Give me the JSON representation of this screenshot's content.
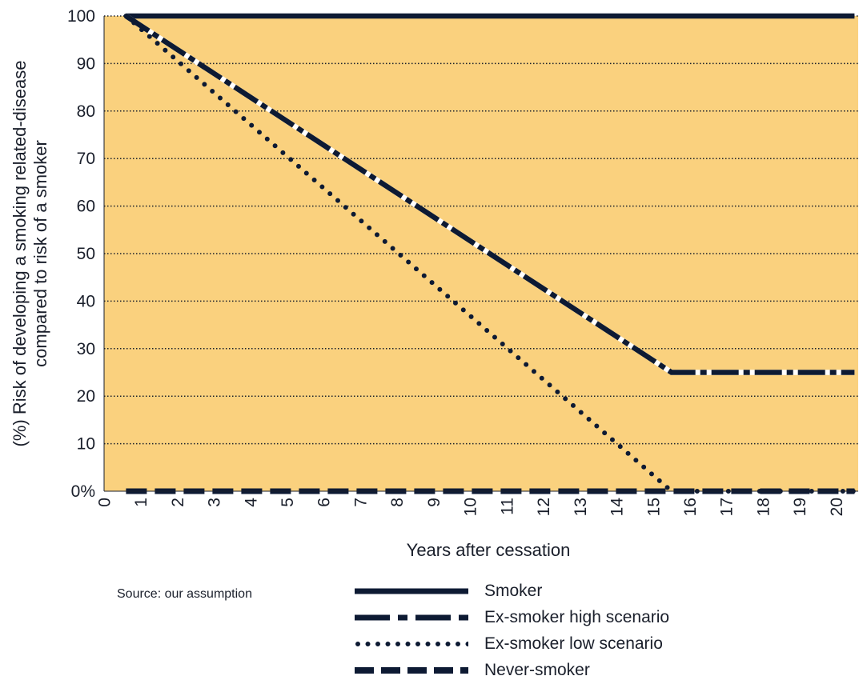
{
  "chart_data": {
    "type": "line",
    "xlabel": "Years after cessation",
    "ylabel_lines": [
      "(%) Risk of developing a smoking related-disease",
      "compared to risk of a smoker"
    ],
    "x_ticks": [
      "0",
      "1",
      "2",
      "3",
      "4",
      "5",
      "6",
      "7",
      "8",
      "9",
      "10",
      "11",
      "12",
      "13",
      "14",
      "15",
      "16",
      "17",
      "18",
      "19",
      "20"
    ],
    "y_ticks": [
      "0%",
      "10",
      "20",
      "30",
      "40",
      "50",
      "60",
      "70",
      "80",
      "90",
      "100"
    ],
    "xlim": [
      0,
      20.6
    ],
    "ylim": [
      0,
      100
    ],
    "grid": "horizontal dotted",
    "legend_position": "bottom",
    "background_color": "#fad17e",
    "line_color": "#0d1a33",
    "series": [
      {
        "name": "Smoker",
        "style": "solid",
        "points": [
          [
            0.6,
            100
          ],
          [
            20.5,
            100
          ]
        ]
      },
      {
        "name": "Ex-smoker high scenario",
        "style": "dash-dot",
        "points": [
          [
            0.6,
            100
          ],
          [
            15.5,
            25
          ],
          [
            20.5,
            25
          ]
        ]
      },
      {
        "name": "Ex-smoker low scenario",
        "style": "dotted",
        "points": [
          [
            0.6,
            100
          ],
          [
            15.5,
            0
          ],
          [
            20.5,
            0
          ]
        ]
      },
      {
        "name": "Never-smoker",
        "style": "dashed",
        "points": [
          [
            0.6,
            0
          ],
          [
            20.5,
            0
          ]
        ]
      }
    ]
  },
  "source_note": "Source: our assumption"
}
